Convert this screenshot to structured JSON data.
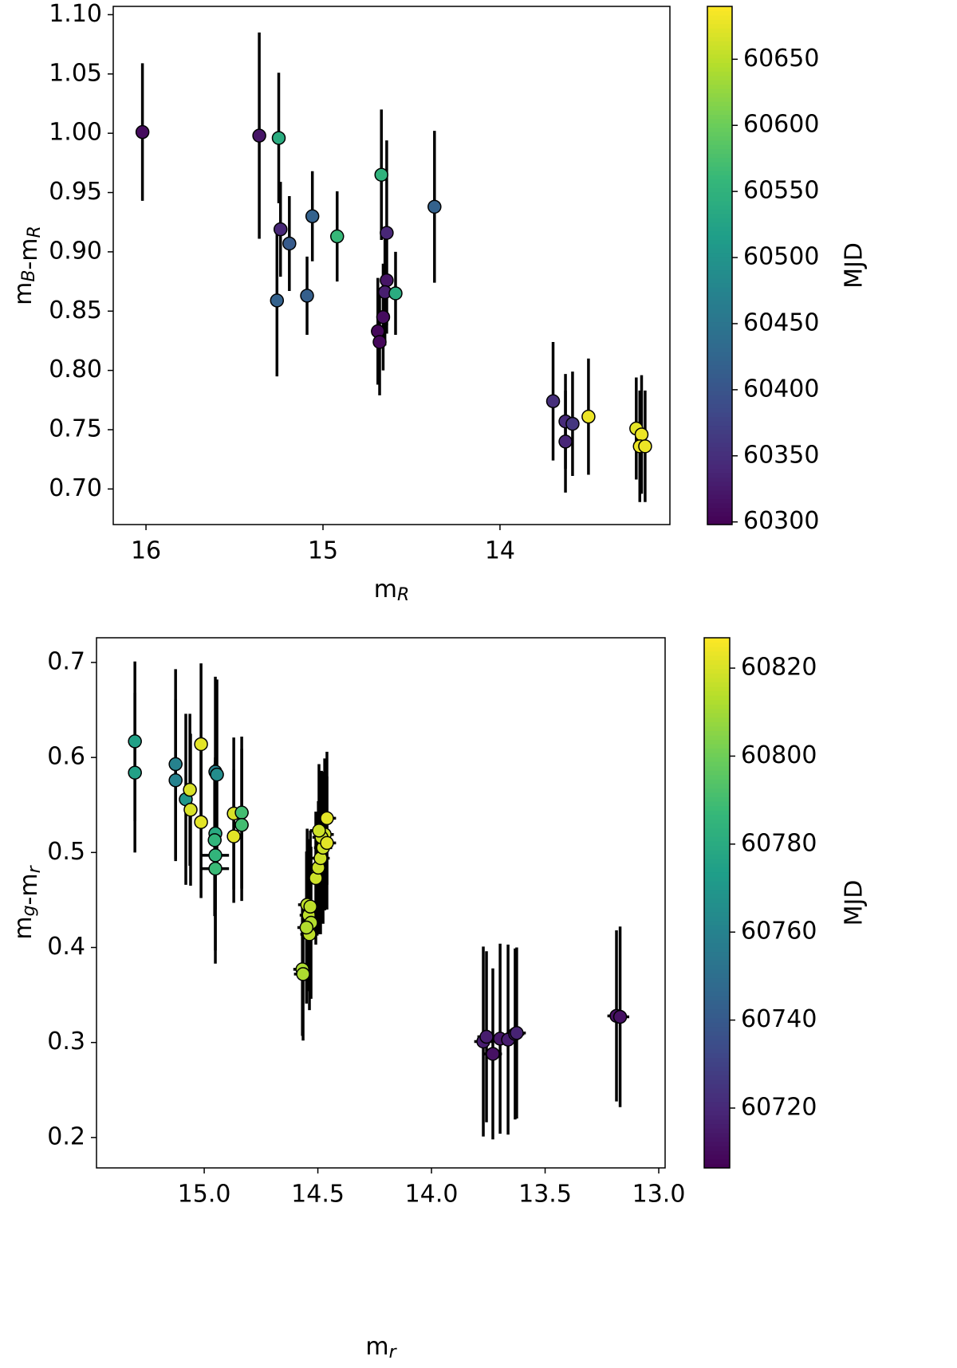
{
  "chart_data": [
    {
      "type": "scatter",
      "xlabel": [
        {
          "base": "m",
          "sub": "R"
        }
      ],
      "ylabel": [
        {
          "base": "m",
          "sub": "B"
        },
        {
          "base": "-m",
          "sub": "R"
        }
      ],
      "xlim": [
        16.185,
        13.04
      ],
      "xticks": [
        16,
        15,
        14
      ],
      "ylim": [
        0.67,
        1.107
      ],
      "yticks": [
        {
          "value": 0.7,
          "label": "0.70"
        },
        0.75,
        {
          "value": 0.8,
          "label": "0.80"
        },
        0.85,
        {
          "value": 0.9,
          "label": "0.90"
        },
        0.95,
        {
          "value": 1.0,
          "label": "1.00"
        },
        1.05,
        {
          "value": 1.1,
          "label": "1.10"
        }
      ],
      "colorbar": {
        "label": "MJD",
        "colormap": "viridis",
        "lim": [
          60298,
          60690
        ],
        "ticks": [
          60300,
          60350,
          60400,
          60450,
          60500,
          60550,
          60600,
          60650
        ]
      },
      "x": [
        16.02,
        15.36,
        15.25,
        15.24,
        15.19,
        15.26,
        15.06,
        15.09,
        14.92,
        14.67,
        14.64,
        14.64,
        14.65,
        14.66,
        14.69,
        14.68,
        14.59,
        14.37,
        13.7,
        13.63,
        13.63,
        13.59,
        13.5,
        13.23,
        13.2,
        13.21,
        13.18
      ],
      "y": [
        1.001,
        0.998,
        0.996,
        0.919,
        0.907,
        0.859,
        0.93,
        0.863,
        0.913,
        0.965,
        0.916,
        0.876,
        0.866,
        0.845,
        0.833,
        0.824,
        0.865,
        0.938,
        0.774,
        0.757,
        0.74,
        0.755,
        0.761,
        0.751,
        0.746,
        0.736,
        0.736
      ],
      "yerr": [
        0.058,
        0.087,
        0.055,
        0.04,
        0.04,
        0.064,
        0.038,
        0.033,
        0.038,
        0.055,
        0.078,
        0.045,
        0.045,
        0.045,
        0.045,
        0.045,
        0.035,
        0.064,
        0.05,
        0.04,
        0.043,
        0.044,
        0.049,
        0.043,
        0.05,
        0.047,
        0.047
      ],
      "c": [
        60310,
        60320,
        60540,
        60340,
        60410,
        60420,
        60420,
        60415,
        60560,
        60550,
        60340,
        60320,
        60330,
        60310,
        60305,
        60305,
        60540,
        60420,
        60350,
        60345,
        60340,
        60360,
        60680,
        60675,
        60680,
        60680,
        60680
      ]
    },
    {
      "type": "scatter",
      "xlabel": [
        {
          "base": "m",
          "sub": "r"
        }
      ],
      "ylabel": [
        {
          "base": "m",
          "sub": "g"
        },
        {
          "base": "-m",
          "sub": "r"
        }
      ],
      "xlim": [
        15.474,
        12.972
      ],
      "xticks": [
        {
          "value": 15.0,
          "label": "15.0"
        },
        14.5,
        {
          "value": 14.0,
          "label": "14.0"
        },
        13.5,
        {
          "value": 13.0,
          "label": "13.0"
        }
      ],
      "ylim": [
        0.168,
        0.726
      ],
      "yticks": [
        0.2,
        0.3,
        0.4,
        0.5,
        0.6,
        0.7
      ],
      "colorbar": {
        "label": "MJD",
        "colormap": "viridis",
        "lim": [
          60706.4,
          60826.9
        ],
        "ticks": [
          60720,
          60740,
          60760,
          60780,
          60800,
          60820
        ]
      },
      "x": [
        15.305,
        15.305,
        15.126,
        15.126,
        15.081,
        15.063,
        15.06,
        15.014,
        15.014,
        14.951,
        14.944,
        14.951,
        14.954,
        14.951,
        14.951,
        14.87,
        14.87,
        14.835,
        14.835,
        14.568,
        14.565,
        14.547,
        14.54,
        14.533,
        14.537,
        14.53,
        14.55,
        14.509,
        14.498,
        14.488,
        14.477,
        14.47,
        14.484,
        14.46,
        14.46,
        14.495,
        13.772,
        13.758,
        13.73,
        13.698,
        13.663,
        13.632,
        13.625,
        13.186,
        13.17
      ],
      "xerr": [
        0.03,
        0.03,
        0.03,
        0.03,
        0.025,
        0.02,
        0.02,
        0.02,
        0.02,
        0.03,
        0.03,
        0.03,
        0.03,
        0.06,
        0.06,
        0.03,
        0.03,
        0.03,
        0.03,
        0.04,
        0.04,
        0.04,
        0.04,
        0.04,
        0.04,
        0.04,
        0.04,
        0.04,
        0.04,
        0.04,
        0.04,
        0.04,
        0.04,
        0.04,
        0.04,
        0.04,
        0.04,
        0.04,
        0.04,
        0.04,
        0.04,
        0.04,
        0.04,
        0.04,
        0.04
      ],
      "y": [
        0.617,
        0.584,
        0.593,
        0.576,
        0.556,
        0.566,
        0.545,
        0.614,
        0.532,
        0.585,
        0.582,
        0.52,
        0.513,
        0.497,
        0.483,
        0.541,
        0.517,
        0.542,
        0.529,
        0.377,
        0.372,
        0.445,
        0.434,
        0.443,
        0.414,
        0.426,
        0.421,
        0.473,
        0.484,
        0.494,
        0.505,
        0.519,
        0.516,
        0.536,
        0.51,
        0.523,
        0.301,
        0.306,
        0.288,
        0.304,
        0.303,
        0.309,
        0.31,
        0.328,
        0.327
      ],
      "yerr": [
        0.084,
        0.084,
        0.1,
        0.085,
        0.09,
        0.08,
        0.08,
        0.085,
        0.08,
        0.1,
        0.1,
        0.08,
        0.08,
        0.1,
        0.1,
        0.08,
        0.07,
        0.08,
        0.08,
        0.07,
        0.07,
        0.08,
        0.08,
        0.08,
        0.08,
        0.08,
        0.08,
        0.07,
        0.07,
        0.08,
        0.08,
        0.08,
        0.07,
        0.07,
        0.07,
        0.07,
        0.1,
        0.09,
        0.09,
        0.1,
        0.1,
        0.09,
        0.09,
        0.09,
        0.095
      ],
      "c": [
        60775,
        60775,
        60760,
        60760,
        60770,
        60820,
        60820,
        60822,
        60822,
        60760,
        60765,
        60780,
        60785,
        60785,
        60788,
        60820,
        60822,
        60790,
        60790,
        60812,
        60812,
        60815,
        60815,
        60815,
        60815,
        60813,
        60813,
        60818,
        60818,
        60818,
        60818,
        60818,
        60818,
        60822,
        60822,
        60818,
        60716,
        60716,
        60712,
        60714,
        60716,
        60716,
        60718,
        60712,
        60712
      ]
    }
  ]
}
